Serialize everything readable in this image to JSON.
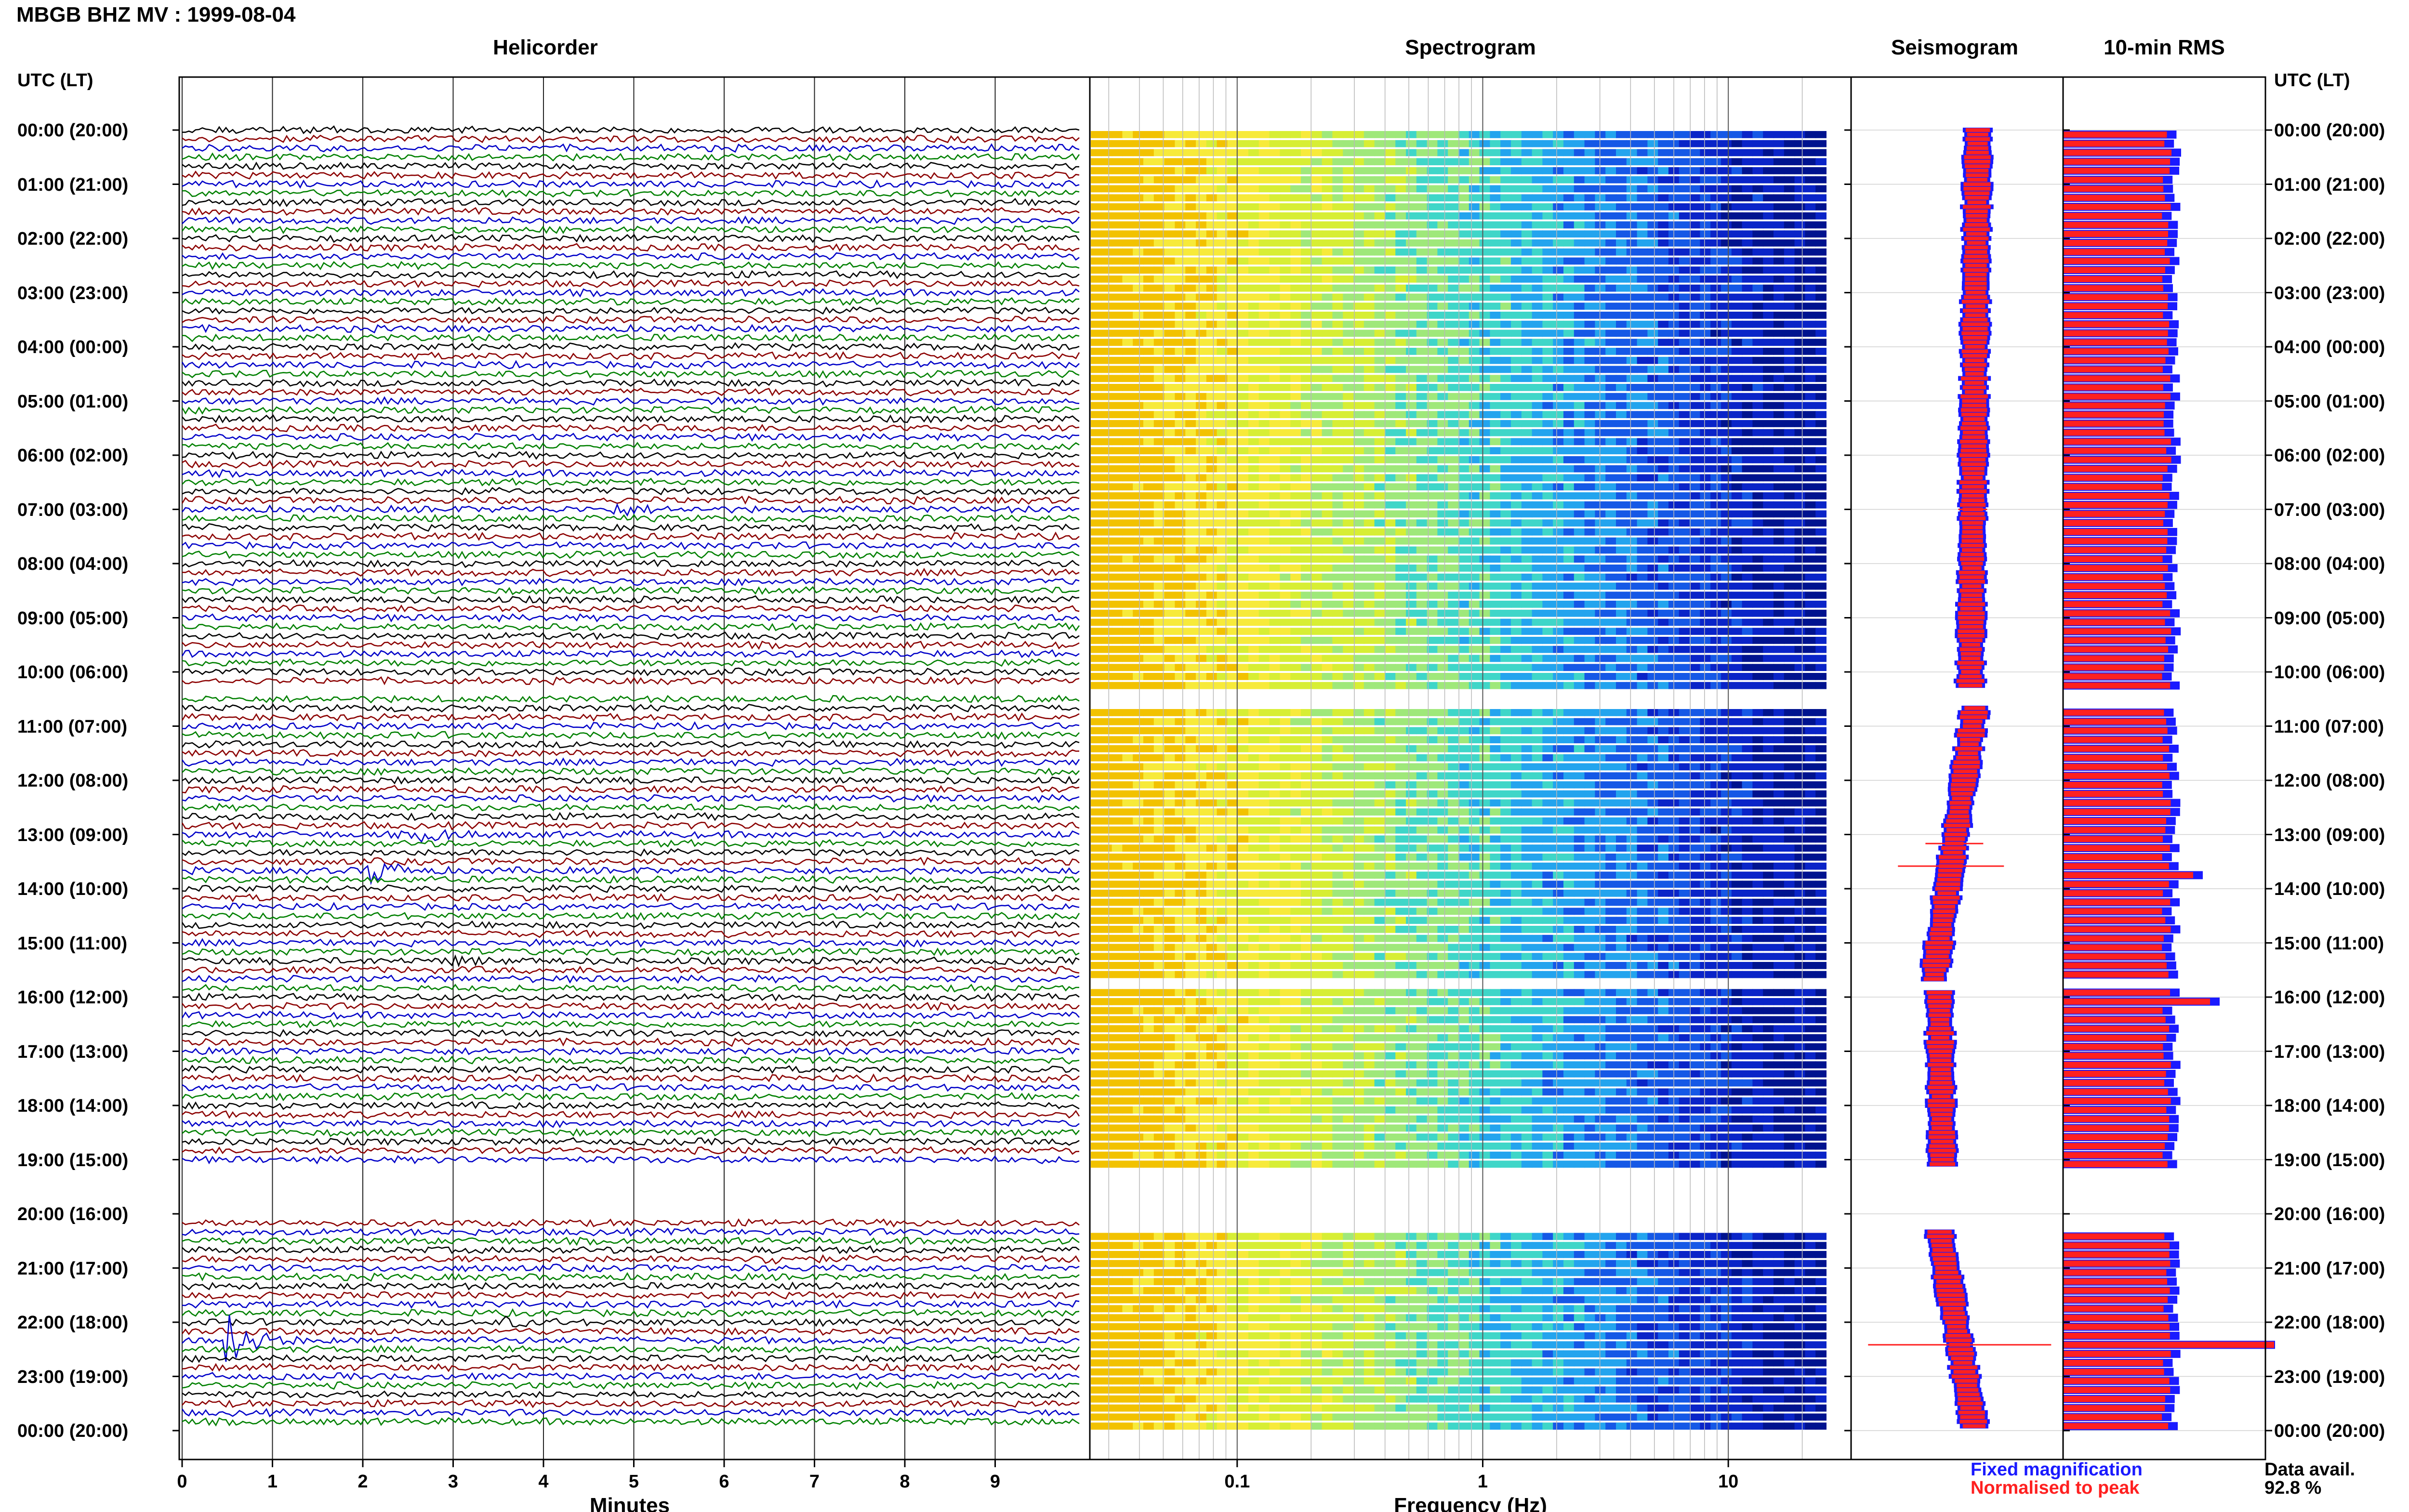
{
  "header": {
    "title": "MBGB BHZ MV : 1999-08-04",
    "utc_label": "UTC (LT)"
  },
  "panels": {
    "helicorder": "Helicorder",
    "spectrogram": "Spectrogram",
    "seismogram": "Seismogram",
    "rms": "10-min RMS"
  },
  "rows": [
    "00:00 (20:00)",
    "01:00 (21:00)",
    "02:00 (22:00)",
    "03:00 (23:00)",
    "04:00 (00:00)",
    "05:00 (01:00)",
    "06:00 (02:00)",
    "07:00 (03:00)",
    "08:00 (04:00)",
    "09:00 (05:00)",
    "10:00 (06:00)",
    "11:00 (07:00)",
    "12:00 (08:00)",
    "13:00 (09:00)",
    "14:00 (10:00)",
    "15:00 (11:00)",
    "16:00 (12:00)",
    "17:00 (13:00)",
    "18:00 (14:00)",
    "19:00 (15:00)",
    "20:00 (16:00)",
    "21:00 (17:00)",
    "22:00 (18:00)",
    "23:00 (19:00)",
    "00:00 (20:00)"
  ],
  "legend": {
    "fixed": "Fixed magnification",
    "normalised": "Normalised to peak",
    "avail_label": "Data avail.",
    "avail_value": "92.8 %"
  },
  "chart_data": [
    {
      "type": "line",
      "title": "Helicorder",
      "xlabel": "Minutes",
      "xlim": [
        0,
        10
      ],
      "x_ticks": [
        "0",
        "1",
        "2",
        "3",
        "4",
        "5",
        "6",
        "7",
        "8",
        "9"
      ],
      "trace_colors": [
        "#000000",
        "#8b0000",
        "#0000c8",
        "#008000"
      ],
      "data_gaps_hours": [
        [
          10.3,
          10.6
        ],
        [
          15.7,
          15.85
        ],
        [
          19.1,
          20.3
        ]
      ],
      "events": [
        {
          "hour": 7.0,
          "minute": 4.8,
          "color": "#8b0000",
          "amplitude": 1.5
        },
        {
          "hour": 13.0,
          "minute": 2.7,
          "color": "#8b0000",
          "amplitude": 2.5
        },
        {
          "hour": 13.6,
          "minute": 2.1,
          "color": "#0000c8",
          "amplitude": 3.5
        },
        {
          "hour": 15.3,
          "minute": 3.0,
          "color": "#008000",
          "amplitude": 1.2
        },
        {
          "hour": 20.9,
          "minute": 6.5,
          "color": "#008000",
          "amplitude": 1.5
        },
        {
          "hour": 22.0,
          "minute": 3.6,
          "color": "#8b0000",
          "amplitude": 1.2
        },
        {
          "hour": 22.3,
          "minute": 0.5,
          "color": "#008000",
          "amplitude": 8.0
        }
      ]
    },
    {
      "type": "heatmap",
      "title": "Spectrogram",
      "xlabel": "Frequency (Hz)",
      "x_scale": "log",
      "x_ticks": [
        "0.1",
        "1",
        "10"
      ],
      "colormap": [
        "#f2c200",
        "#f7ea3a",
        "#d7ee34",
        "#9fe87a",
        "#3fd6c8",
        "#23a4ee",
        "#1558e6",
        "#0a24c8",
        "#00138f"
      ]
    },
    {
      "type": "line",
      "title": "Seismogram",
      "series": [
        {
          "name": "Fixed magnification",
          "color": "#1a1aff"
        },
        {
          "name": "Normalised to peak",
          "color": "#ff2020"
        }
      ]
    },
    {
      "type": "bar",
      "title": "10-min RMS",
      "series": [
        {
          "name": "Fixed magnification",
          "color": "#1a1aff"
        },
        {
          "name": "Normalised to peak",
          "color": "#ff2020"
        }
      ],
      "peaks_hours": [
        13.6,
        16.0,
        22.4
      ]
    }
  ]
}
